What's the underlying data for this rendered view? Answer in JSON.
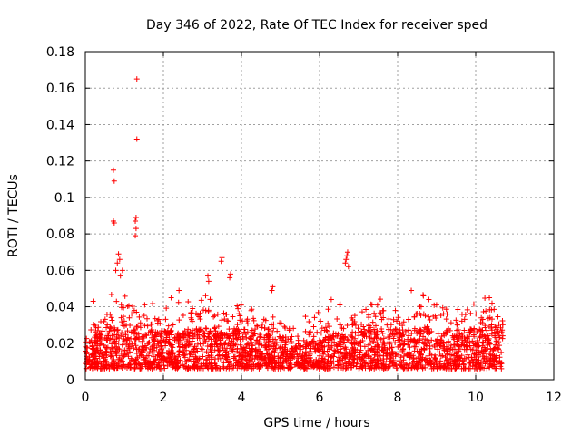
{
  "chart_data": {
    "type": "scatter",
    "title": "Day 346 of 2022, Rate Of TEC Index for receiver sped",
    "xlabel": "GPS time / hours",
    "ylabel": "ROTI / TECUs",
    "xlim": [
      0,
      12
    ],
    "ylim": [
      0,
      0.18
    ],
    "xticks": [
      0,
      2,
      4,
      6,
      8,
      10,
      12
    ],
    "yticks": [
      0,
      0.02,
      0.04,
      0.06,
      0.08,
      0.1,
      0.12,
      0.14,
      0.16,
      0.18
    ],
    "xtick_labels": [
      "0",
      "2",
      "4",
      "6",
      "8",
      "10",
      "12"
    ],
    "ytick_labels": [
      "0",
      "0.02",
      "0.04",
      "0.06",
      "0.08",
      "0.1",
      "0.12",
      "0.14",
      "0.16",
      "0.18"
    ],
    "grid": true,
    "marker": "+",
    "color": "#ff0000",
    "data_extent_hours": [
      0,
      10.7
    ],
    "outliers": [
      [
        1.32,
        0.165
      ],
      [
        1.32,
        0.132
      ],
      [
        0.72,
        0.115
      ],
      [
        0.74,
        0.109
      ],
      [
        0.72,
        0.087
      ],
      [
        0.74,
        0.086
      ],
      [
        1.3,
        0.089
      ],
      [
        1.28,
        0.087
      ],
      [
        1.3,
        0.083
      ],
      [
        1.28,
        0.079
      ],
      [
        0.85,
        0.069
      ],
      [
        0.88,
        0.066
      ],
      [
        0.82,
        0.064
      ],
      [
        0.95,
        0.06
      ],
      [
        0.9,
        0.057
      ],
      [
        0.78,
        0.06
      ],
      [
        6.72,
        0.07
      ],
      [
        6.7,
        0.068
      ],
      [
        6.68,
        0.066
      ],
      [
        6.66,
        0.064
      ],
      [
        6.74,
        0.062
      ],
      [
        3.5,
        0.067
      ],
      [
        3.48,
        0.065
      ],
      [
        3.14,
        0.057
      ],
      [
        3.16,
        0.054
      ],
      [
        3.72,
        0.058
      ],
      [
        3.7,
        0.056
      ],
      [
        4.8,
        0.051
      ],
      [
        4.78,
        0.049
      ],
      [
        2.4,
        0.049
      ],
      [
        0.2,
        0.043
      ],
      [
        8.35,
        0.049
      ],
      [
        10.35,
        0.045
      ],
      [
        6.3,
        0.044
      ],
      [
        8.8,
        0.044
      ],
      [
        2.2,
        0.045
      ]
    ],
    "bulk_envelope": [
      [
        0.0,
        0.022
      ],
      [
        0.5,
        0.03
      ],
      [
        1.0,
        0.038
      ],
      [
        1.5,
        0.028
      ],
      [
        2.0,
        0.03
      ],
      [
        2.5,
        0.03
      ],
      [
        3.0,
        0.032
      ],
      [
        3.5,
        0.034
      ],
      [
        4.0,
        0.03
      ],
      [
        4.5,
        0.028
      ],
      [
        5.0,
        0.026
      ],
      [
        5.5,
        0.022
      ],
      [
        6.0,
        0.024
      ],
      [
        6.5,
        0.028
      ],
      [
        7.0,
        0.03
      ],
      [
        7.5,
        0.032
      ],
      [
        8.0,
        0.032
      ],
      [
        8.5,
        0.034
      ],
      [
        9.0,
        0.03
      ],
      [
        9.5,
        0.03
      ],
      [
        10.0,
        0.032
      ],
      [
        10.5,
        0.034
      ],
      [
        10.7,
        0.03
      ]
    ]
  }
}
